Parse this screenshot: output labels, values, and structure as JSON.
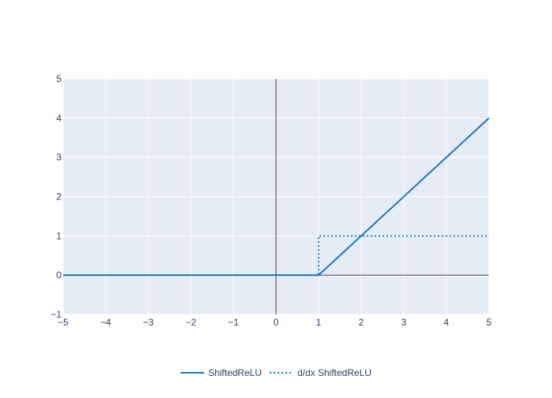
{
  "chart_data": {
    "type": "line",
    "title": "",
    "xlabel": "",
    "ylabel": "",
    "xlim": [
      -5,
      5
    ],
    "ylim": [
      -1,
      5
    ],
    "x_ticks": [
      -5,
      -4,
      -3,
      -2,
      -1,
      0,
      1,
      2,
      3,
      4,
      5
    ],
    "y_ticks": [
      -1,
      0,
      1,
      2,
      3,
      4,
      5
    ],
    "x_tick_labels": [
      "−5",
      "−4",
      "−3",
      "−2",
      "−1",
      "0",
      "1",
      "2",
      "3",
      "4",
      "5"
    ],
    "y_tick_labels": [
      "−1",
      "0",
      "1",
      "2",
      "3",
      "4",
      "5"
    ],
    "grid": true,
    "legend_position": "bottom-center",
    "series": [
      {
        "name": "ShiftedReLU",
        "color": "#1f77b4",
        "dash": "solid",
        "x": [
          -5,
          1,
          5
        ],
        "y": [
          0,
          0,
          4
        ]
      },
      {
        "name": "d/dx ShiftedReLU",
        "color": "#1f77b4",
        "dash": "dot",
        "x": [
          -5,
          1,
          1,
          5
        ],
        "y": [
          0,
          0,
          1,
          1
        ]
      }
    ],
    "colors": {
      "plot_background": "#e5ecf6",
      "grid": "#ffffff",
      "zero_line": "#444444",
      "tick_text": "#2a3f5f"
    }
  }
}
